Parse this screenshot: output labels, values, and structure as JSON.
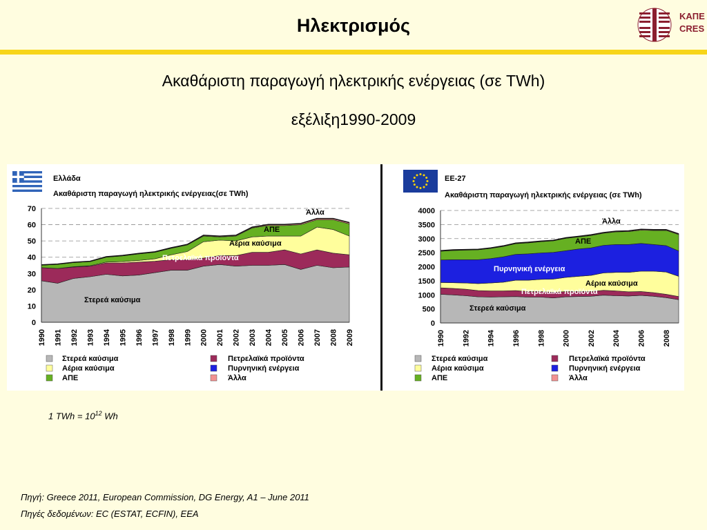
{
  "header": {
    "title": "Ηλεκτρισμός",
    "logo_line1": "ΚΑΠΕ",
    "logo_line2": "CRES"
  },
  "subtitle": {
    "line1": "Ακαθάριστη παραγωγή ηλεκτρικής ενέργειας (σε TWh)",
    "line2": "εξέλιξη1990-2009"
  },
  "colors": {
    "solid": "#b7b7b7",
    "oil": "#9c2a5a",
    "gas": "#fffe9c",
    "renewables": "#66b022",
    "nuclear": "#1c20e0",
    "other": "#f29191",
    "accent_bar": "#f7d51a",
    "background": "#fffde0"
  },
  "chart_data": [
    {
      "type": "area",
      "region": "Ελλάδα",
      "title": "Ακαθάριστη παραγωγή ηλεκτρικής ενέργειας(σε TWh)",
      "x": [
        "1990",
        "1991",
        "1992",
        "1993",
        "1994",
        "1995",
        "1996",
        "1997",
        "1998",
        "1999",
        "2000",
        "2001",
        "2002",
        "2003",
        "2004",
        "2005",
        "2006",
        "2007",
        "2008",
        "2009"
      ],
      "ylim": [
        0,
        70
      ],
      "yticks": [
        "0",
        "10",
        "20",
        "30",
        "40",
        "50",
        "60",
        "70"
      ],
      "series": [
        {
          "name": "Στερεά καύσιμα",
          "key": "solid",
          "values": [
            25.5,
            24,
            27,
            28,
            29.5,
            28.5,
            29,
            30.5,
            32,
            32,
            34.5,
            35.5,
            34.5,
            35,
            35,
            35.5,
            32.5,
            35,
            33.5,
            34
          ]
        },
        {
          "name": "Πετρελαϊκά προϊόντα",
          "key": "oil",
          "values": [
            8,
            9,
            7,
            6.5,
            7,
            8,
            8,
            7,
            6.5,
            6.5,
            5,
            5.5,
            6.5,
            8,
            8,
            9,
            9.5,
            9.5,
            9,
            7.5
          ]
        },
        {
          "name": "Αέρια καύσιμα",
          "key": "gas",
          "values": [
            0.1,
            0.1,
            0.2,
            0.3,
            0.5,
            0.8,
            1,
            1.5,
            3,
            5,
            10,
            9.5,
            9,
            9.5,
            10,
            8.5,
            11,
            14,
            14.5,
            11.5
          ]
        },
        {
          "name": "ΑΠΕ",
          "key": "renewables",
          "values": [
            1.5,
            2.5,
            2.5,
            2.5,
            3,
            3.5,
            4,
            4,
            4,
            4,
            3.5,
            2,
            3,
            5.5,
            6.5,
            6.5,
            7,
            4.5,
            6,
            7.5
          ]
        },
        {
          "name": "Άλλα",
          "key": "other",
          "values": [
            0.2,
            0.2,
            0.2,
            0.2,
            0.3,
            0.3,
            0.3,
            0.3,
            0.3,
            0.4,
            0.5,
            0.5,
            0.5,
            0.5,
            0.6,
            0.6,
            0.7,
            0.8,
            0.8,
            0.8
          ]
        }
      ],
      "in_chart_labels": [
        "Άλλα",
        "ΑΠΕ",
        "Αέρια καύσιμα",
        "Πετρελαϊκά προϊόντα",
        "Στερεά καύσιμα"
      ]
    },
    {
      "type": "area",
      "region": "ΕΕ-27",
      "title": "Ακαθάριστη παραγωγή ηλεκτρικής ενέργειας (σε TWh)",
      "x": [
        "1990",
        "1991",
        "1992",
        "1993",
        "1994",
        "1995",
        "1996",
        "1997",
        "1998",
        "1999",
        "2000",
        "2001",
        "2002",
        "2003",
        "2004",
        "2005",
        "2006",
        "2007",
        "2008",
        "2009"
      ],
      "xtick_labels": [
        "1990",
        "1992",
        "1994",
        "1996",
        "1998",
        "2000",
        "2002",
        "2004",
        "2006",
        "2008"
      ],
      "ylim": [
        0,
        4000
      ],
      "yticks": [
        "0",
        "500",
        "1000",
        "1500",
        "2000",
        "2500",
        "3000",
        "3500",
        "4000"
      ],
      "series": [
        {
          "name": "Στερεά καύσιμα",
          "key": "solid",
          "values": [
            1020,
            1000,
            970,
            930,
            920,
            930,
            940,
            920,
            920,
            890,
            930,
            940,
            950,
            990,
            970,
            960,
            980,
            950,
            900,
            830
          ]
        },
        {
          "name": "Πετρελαϊκά προϊόντα",
          "key": "oil",
          "values": [
            230,
            230,
            230,
            220,
            220,
            210,
            210,
            200,
            200,
            200,
            190,
            180,
            170,
            170,
            170,
            150,
            140,
            130,
            120,
            110
          ]
        },
        {
          "name": "Αέρια καύσιμα",
          "key": "gas",
          "values": [
            190,
            200,
            220,
            250,
            280,
            310,
            370,
            400,
            430,
            470,
            500,
            540,
            570,
            620,
            660,
            690,
            720,
            760,
            790,
            720
          ]
        },
        {
          "name": "Πυρνηνική ενέργεια",
          "key": "nuclear",
          "values": [
            800,
            820,
            830,
            850,
            870,
            900,
            920,
            940,
            940,
            950,
            950,
            970,
            980,
            980,
            990,
            990,
            990,
            950,
            940,
            900
          ]
        },
        {
          "name": "ΑΠΕ",
          "key": "renewables",
          "values": [
            310,
            330,
            340,
            350,
            360,
            370,
            380,
            390,
            400,
            410,
            440,
            430,
            440,
            430,
            450,
            460,
            470,
            500,
            540,
            580
          ]
        },
        {
          "name": "Άλλα",
          "key": "other",
          "values": [
            20,
            20,
            20,
            20,
            20,
            20,
            20,
            20,
            20,
            20,
            20,
            20,
            25,
            25,
            25,
            25,
            30,
            30,
            30,
            30
          ]
        }
      ],
      "in_chart_labels": [
        "Άλλα",
        "ΑΠΕ",
        "Πυρνηνική ενέργεια",
        "Αέρια καύσιμα",
        "Πετρελαϊκά προϊόντα",
        "Στερεά καύσιμα"
      ]
    }
  ],
  "legend": {
    "greece": [
      {
        "label": "Στερεά καύσιμα",
        "key": "solid"
      },
      {
        "label": "Πετρελαϊκά προϊόντα",
        "key": "oil"
      },
      {
        "label": "Αέρια καύσιμα",
        "key": "gas"
      },
      {
        "label": "Πυρνηνική ενέργεια",
        "key": "nuclear"
      },
      {
        "label": "ΑΠΕ",
        "key": "renewables"
      },
      {
        "label": "Άλλα",
        "key": "other"
      }
    ],
    "eu": [
      {
        "label": "Στερεά καύσιμα",
        "key": "solid"
      },
      {
        "label": "Πετρελαϊκά προϊόντα",
        "key": "oil"
      },
      {
        "label": "Αέρια καύσιμα",
        "key": "gas"
      },
      {
        "label": "Πυρνηνική ενέργεια",
        "key": "nuclear"
      },
      {
        "label": "ΑΠΕ",
        "key": "renewables"
      },
      {
        "label": "Άλλα",
        "key": "other"
      }
    ]
  },
  "footnote": {
    "prefix": "1 TWh = 10",
    "superscript": "12",
    "suffix": " Wh"
  },
  "sources": {
    "line1": "Πηγή: Greece 2011, European Commission, DG Energy, A1 – June 2011",
    "line2": "Πηγές δεδομένων: EC (ESTAT, ECFIN), EEA"
  }
}
